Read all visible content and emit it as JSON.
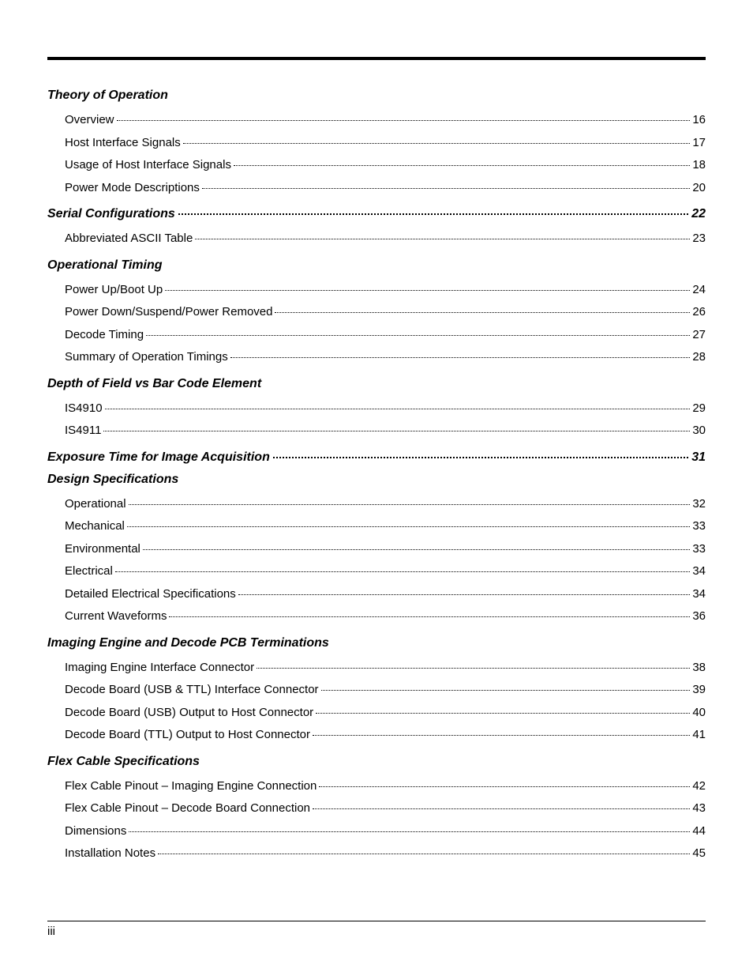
{
  "page_number_label": "iii",
  "sections": [
    {
      "heading": "Theory of Operation",
      "heading_page": null,
      "entries": [
        {
          "label": "Overview",
          "page": "16"
        },
        {
          "label": "Host Interface Signals",
          "page": "17"
        },
        {
          "label": "Usage of Host Interface Signals",
          "page": "18"
        },
        {
          "label": "Power Mode Descriptions",
          "page": "20"
        }
      ]
    },
    {
      "heading": "Serial Configurations",
      "heading_page": "22",
      "entries": [
        {
          "label": "Abbreviated ASCII Table",
          "page": "23"
        }
      ]
    },
    {
      "heading": "Operational Timing",
      "heading_page": null,
      "entries": [
        {
          "label": "Power Up/Boot Up",
          "page": "24"
        },
        {
          "label": "Power Down/Suspend/Power Removed",
          "page": "26"
        },
        {
          "label": "Decode Timing",
          "page": "27"
        },
        {
          "label": "Summary of Operation Timings",
          "page": "28"
        }
      ]
    },
    {
      "heading": "Depth of Field vs Bar Code Element",
      "heading_page": null,
      "entries": [
        {
          "label": "IS4910",
          "page": "29"
        },
        {
          "label": "IS4911",
          "page": "30"
        }
      ]
    },
    {
      "heading": "Exposure Time for Image Acquisition",
      "heading_page": "31",
      "entries": []
    },
    {
      "heading": "Design Specifications",
      "heading_page": null,
      "entries": [
        {
          "label": "Operational",
          "page": "32"
        },
        {
          "label": "Mechanical",
          "page": "33"
        },
        {
          "label": "Environmental",
          "page": "33"
        },
        {
          "label": "Electrical",
          "page": "34"
        },
        {
          "label": "Detailed Electrical Specifications",
          "page": "34"
        },
        {
          "label": "Current Waveforms",
          "page": "36"
        }
      ]
    },
    {
      "heading": "Imaging Engine and Decode PCB Terminations",
      "heading_page": null,
      "entries": [
        {
          "label": "Imaging Engine Interface Connector",
          "page": "38"
        },
        {
          "label": "Decode Board (USB & TTL) Interface Connector",
          "page": "39"
        },
        {
          "label": "Decode Board (USB) Output to Host Connector",
          "page": "40"
        },
        {
          "label": "Decode Board (TTL) Output to Host Connector",
          "page": "41"
        }
      ]
    },
    {
      "heading": "Flex Cable Specifications",
      "heading_page": null,
      "entries": [
        {
          "label": "Flex Cable Pinout – Imaging Engine Connection",
          "page": "42"
        },
        {
          "label": "Flex Cable Pinout – Decode Board Connection",
          "page": "43"
        },
        {
          "label": "Dimensions",
          "page": "44"
        },
        {
          "label": "Installation Notes",
          "page": "45"
        }
      ]
    }
  ]
}
